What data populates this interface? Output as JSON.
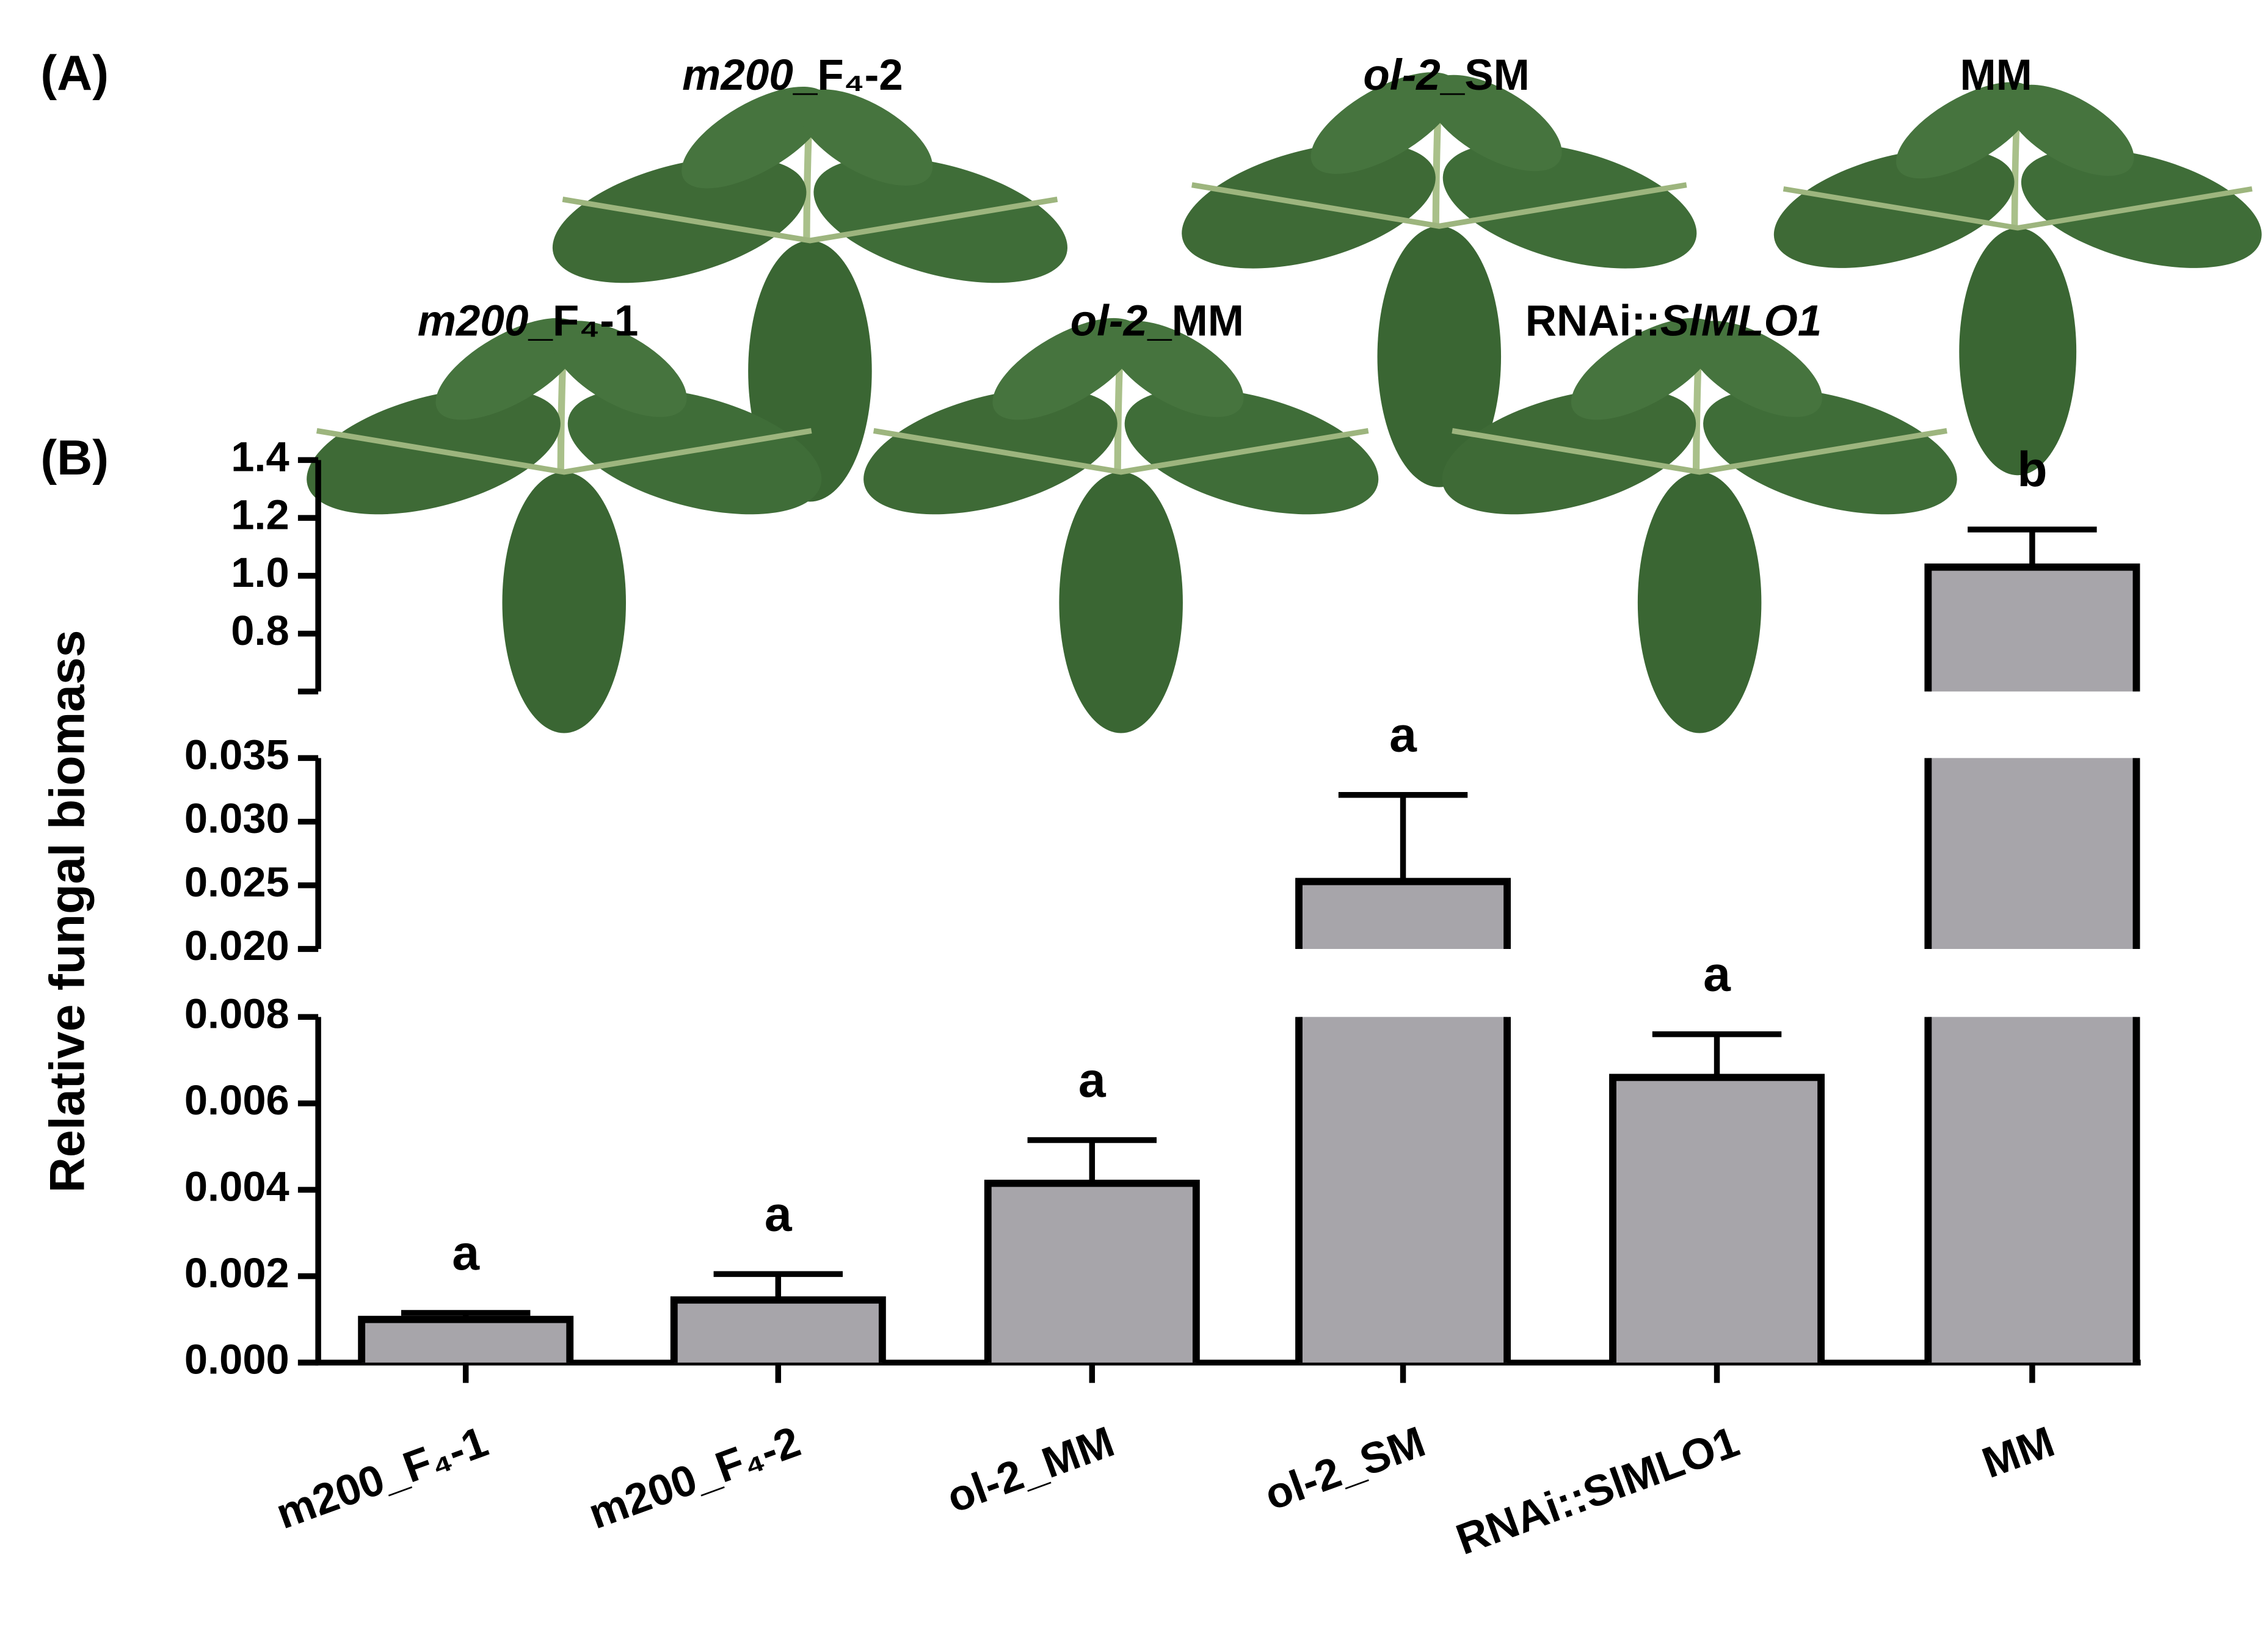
{
  "panel_a": {
    "label": "(A)",
    "leaves": [
      {
        "parts": [
          {
            "italic": true,
            "text": "m200"
          },
          {
            "italic": false,
            "text": "_F₄-2"
          }
        ]
      },
      {
        "parts": [
          {
            "italic": true,
            "text": "ol-2"
          },
          {
            "italic": false,
            "text": "_SM"
          }
        ]
      },
      {
        "parts": [
          {
            "italic": false,
            "text": "MM"
          }
        ]
      },
      {
        "parts": [
          {
            "italic": true,
            "text": "m200"
          },
          {
            "italic": false,
            "text": "_F₄-1"
          }
        ]
      },
      {
        "parts": [
          {
            "italic": true,
            "text": "ol-2"
          },
          {
            "italic": false,
            "text": "_MM"
          }
        ]
      },
      {
        "parts": [
          {
            "italic": false,
            "text": "RNAi::"
          },
          {
            "italic": true,
            "text": "SlMLO1"
          }
        ]
      }
    ]
  },
  "chart_data": {
    "type": "bar",
    "panel_label": "(B)",
    "y_label": "Relative fungal biomass",
    "categories": [
      "m200_F₄-1",
      "m200_F₄-2",
      "ol-2_MM",
      "ol-2_SM",
      "RNAi::SlMLO1",
      "MM"
    ],
    "values": [
      0.001,
      0.00145,
      0.00415,
      0.0253,
      0.0066,
      1.03
    ],
    "errors": [
      0.00015,
      0.0006,
      0.001,
      0.0068,
      0.001,
      0.13
    ],
    "annotations": [
      "a",
      "a",
      "a",
      "a",
      "a",
      "b"
    ],
    "color": "#a7a5aa",
    "segments": [
      {
        "ylim": [
          0,
          0.008
        ],
        "yticks": [
          {
            "value": 0,
            "label": "0.000"
          },
          {
            "value": 0.002,
            "label": "0.002"
          },
          {
            "value": 0.004,
            "label": "0.004"
          },
          {
            "value": 0.006,
            "label": "0.006"
          },
          {
            "value": 0.008,
            "label": "0.008"
          }
        ]
      },
      {
        "ylim": [
          0.02,
          0.035
        ],
        "yticks": [
          {
            "value": 0.02,
            "label": "0.020"
          },
          {
            "value": 0.025,
            "label": "0.025"
          },
          {
            "value": 0.03,
            "label": "0.030"
          },
          0.035
        ]
      },
      {
        "ylim": [
          0.6,
          1.4
        ],
        "yticks": [
          0.8,
          {
            "value": 1,
            "label": "1.0"
          },
          1.2,
          1.4
        ]
      }
    ]
  }
}
